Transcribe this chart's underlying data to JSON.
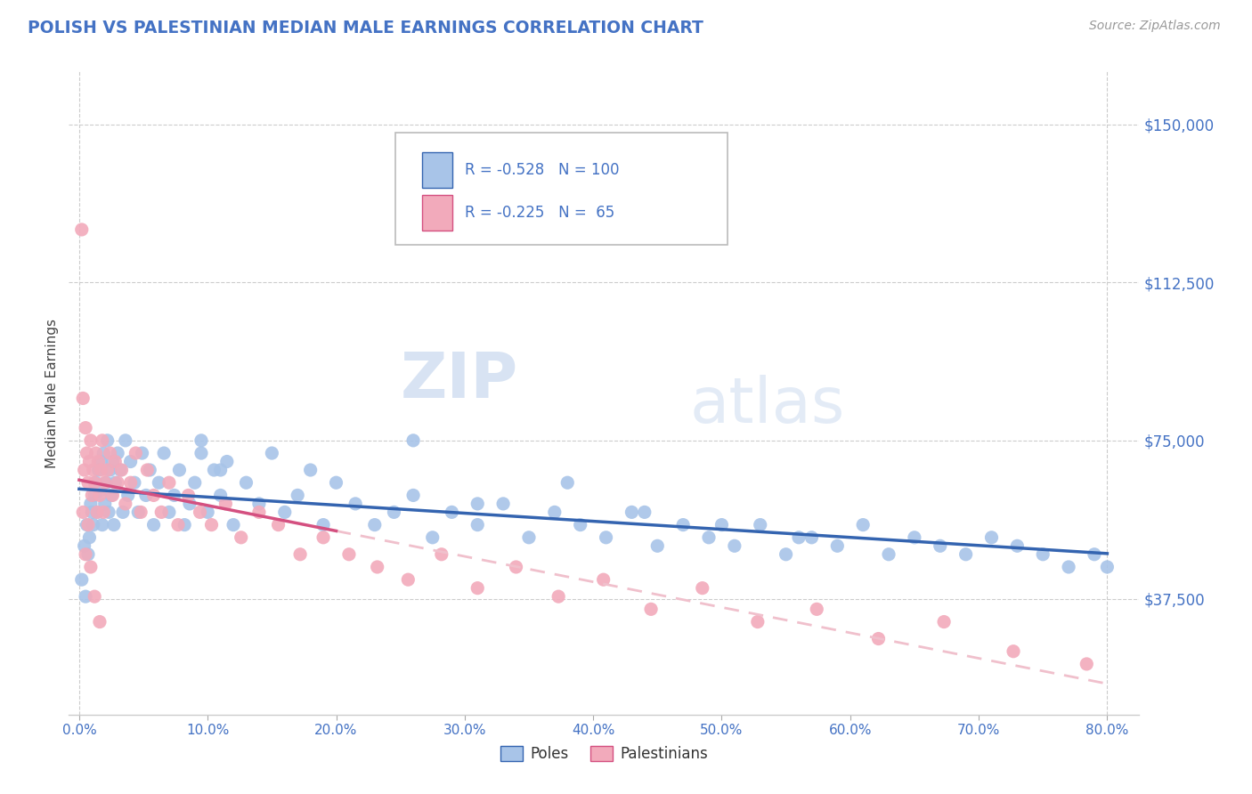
{
  "title": "POLISH VS PALESTINIAN MEDIAN MALE EARNINGS CORRELATION CHART",
  "source": "Source: ZipAtlas.com",
  "ylabel": "Median Male Earnings",
  "xlabel_ticks": [
    "0.0%",
    "10.0%",
    "20.0%",
    "30.0%",
    "40.0%",
    "50.0%",
    "60.0%",
    "70.0%",
    "80.0%"
  ],
  "ytick_labels": [
    "$37,500",
    "$75,000",
    "$112,500",
    "$150,000"
  ],
  "ytick_values": [
    37500,
    75000,
    112500,
    150000
  ],
  "ymin": 10000,
  "ymax": 162500,
  "xmin": -0.008,
  "xmax": 0.825,
  "watermark_zip": "ZIP",
  "watermark_atlas": "atlas",
  "blue_color": "#A8C4E8",
  "pink_color": "#F2AABB",
  "blue_line_color": "#3464B0",
  "pink_line_color": "#D45080",
  "pink_dashed_color": "#F0C0CC",
  "axis_label_color": "#4472C4",
  "title_color": "#4472C4",
  "grid_color": "#CCCCCC",
  "poles_scatter_x": [
    0.002,
    0.004,
    0.005,
    0.006,
    0.007,
    0.008,
    0.009,
    0.01,
    0.011,
    0.012,
    0.013,
    0.014,
    0.015,
    0.016,
    0.017,
    0.018,
    0.019,
    0.02,
    0.021,
    0.022,
    0.023,
    0.024,
    0.025,
    0.026,
    0.027,
    0.028,
    0.03,
    0.032,
    0.034,
    0.036,
    0.038,
    0.04,
    0.043,
    0.046,
    0.049,
    0.052,
    0.055,
    0.058,
    0.062,
    0.066,
    0.07,
    0.074,
    0.078,
    0.082,
    0.086,
    0.09,
    0.095,
    0.1,
    0.105,
    0.11,
    0.115,
    0.12,
    0.13,
    0.14,
    0.15,
    0.16,
    0.17,
    0.18,
    0.19,
    0.2,
    0.215,
    0.23,
    0.245,
    0.26,
    0.275,
    0.29,
    0.31,
    0.33,
    0.35,
    0.37,
    0.39,
    0.41,
    0.43,
    0.45,
    0.47,
    0.49,
    0.51,
    0.53,
    0.55,
    0.57,
    0.59,
    0.61,
    0.63,
    0.65,
    0.67,
    0.69,
    0.71,
    0.73,
    0.75,
    0.77,
    0.79,
    0.8,
    0.095,
    0.11,
    0.26,
    0.31,
    0.38,
    0.44,
    0.5,
    0.56
  ],
  "poles_scatter_y": [
    42000,
    50000,
    38000,
    55000,
    48000,
    52000,
    60000,
    58000,
    55000,
    62000,
    65000,
    58000,
    68000,
    63000,
    70000,
    55000,
    72000,
    60000,
    65000,
    75000,
    58000,
    68000,
    62000,
    70000,
    55000,
    65000,
    72000,
    68000,
    58000,
    75000,
    62000,
    70000,
    65000,
    58000,
    72000,
    62000,
    68000,
    55000,
    65000,
    72000,
    58000,
    62000,
    68000,
    55000,
    60000,
    65000,
    72000,
    58000,
    68000,
    62000,
    70000,
    55000,
    65000,
    60000,
    72000,
    58000,
    62000,
    68000,
    55000,
    65000,
    60000,
    55000,
    58000,
    62000,
    52000,
    58000,
    55000,
    60000,
    52000,
    58000,
    55000,
    52000,
    58000,
    50000,
    55000,
    52000,
    50000,
    55000,
    48000,
    52000,
    50000,
    55000,
    48000,
    52000,
    50000,
    48000,
    52000,
    50000,
    48000,
    45000,
    48000,
    45000,
    75000,
    68000,
    75000,
    60000,
    65000,
    58000,
    55000,
    52000
  ],
  "pales_scatter_x": [
    0.002,
    0.003,
    0.004,
    0.005,
    0.006,
    0.007,
    0.008,
    0.009,
    0.01,
    0.011,
    0.012,
    0.013,
    0.014,
    0.015,
    0.016,
    0.017,
    0.018,
    0.019,
    0.02,
    0.022,
    0.024,
    0.026,
    0.028,
    0.03,
    0.033,
    0.036,
    0.04,
    0.044,
    0.048,
    0.053,
    0.058,
    0.064,
    0.07,
    0.077,
    0.085,
    0.094,
    0.103,
    0.114,
    0.126,
    0.14,
    0.155,
    0.172,
    0.19,
    0.21,
    0.232,
    0.256,
    0.282,
    0.31,
    0.34,
    0.373,
    0.408,
    0.445,
    0.485,
    0.528,
    0.574,
    0.622,
    0.673,
    0.727,
    0.784,
    0.003,
    0.005,
    0.007,
    0.009,
    0.012,
    0.016
  ],
  "pales_scatter_y": [
    125000,
    85000,
    68000,
    78000,
    72000,
    65000,
    70000,
    75000,
    62000,
    68000,
    65000,
    72000,
    58000,
    70000,
    62000,
    68000,
    75000,
    58000,
    65000,
    68000,
    72000,
    62000,
    70000,
    65000,
    68000,
    60000,
    65000,
    72000,
    58000,
    68000,
    62000,
    58000,
    65000,
    55000,
    62000,
    58000,
    55000,
    60000,
    52000,
    58000,
    55000,
    48000,
    52000,
    48000,
    45000,
    42000,
    48000,
    40000,
    45000,
    38000,
    42000,
    35000,
    40000,
    32000,
    35000,
    28000,
    32000,
    25000,
    22000,
    58000,
    48000,
    55000,
    45000,
    38000,
    32000
  ]
}
